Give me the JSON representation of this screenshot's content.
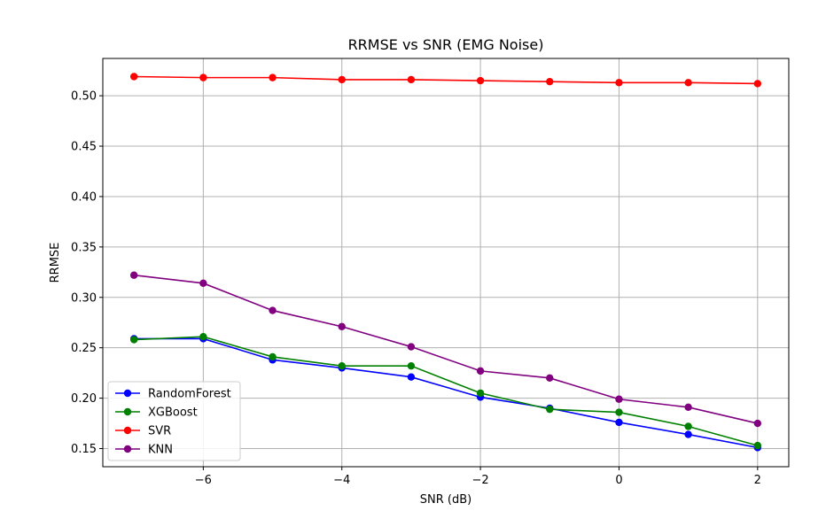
{
  "chart_data": {
    "type": "line",
    "title": "RRMSE vs SNR (EMG Noise)",
    "xlabel": "SNR (dB)",
    "ylabel": "RRMSE",
    "x": [
      -7,
      -6,
      -5,
      -4,
      -3,
      -2,
      -1,
      0,
      1,
      2
    ],
    "xlim": [
      -7.45,
      2.45
    ],
    "ylim": [
      0.132,
      0.537
    ],
    "xticks": [
      -6,
      -4,
      -2,
      0,
      2
    ],
    "xtick_labels": [
      "−6",
      "−4",
      "−2",
      "0",
      "2"
    ],
    "yticks": [
      0.15,
      0.2,
      0.25,
      0.3,
      0.35,
      0.4,
      0.45,
      0.5
    ],
    "ytick_labels": [
      "0.15",
      "0.20",
      "0.25",
      "0.30",
      "0.35",
      "0.40",
      "0.45",
      "0.50"
    ],
    "grid": true,
    "legend_position": "lower-left",
    "series": [
      {
        "name": "RandomForest",
        "color": "#0000ff",
        "values": [
          0.259,
          0.259,
          0.238,
          0.23,
          0.221,
          0.201,
          0.19,
          0.176,
          0.164,
          0.151
        ]
      },
      {
        "name": "XGBoost",
        "color": "#008000",
        "values": [
          0.258,
          0.261,
          0.241,
          0.232,
          0.232,
          0.205,
          0.189,
          0.186,
          0.172,
          0.153
        ]
      },
      {
        "name": "SVR",
        "color": "#ff0000",
        "values": [
          0.519,
          0.518,
          0.518,
          0.516,
          0.516,
          0.515,
          0.514,
          0.513,
          0.513,
          0.512
        ]
      },
      {
        "name": "KNN",
        "color": "#800080",
        "values": [
          0.322,
          0.314,
          0.287,
          0.271,
          0.251,
          0.227,
          0.22,
          0.199,
          0.191,
          0.175
        ]
      }
    ]
  }
}
